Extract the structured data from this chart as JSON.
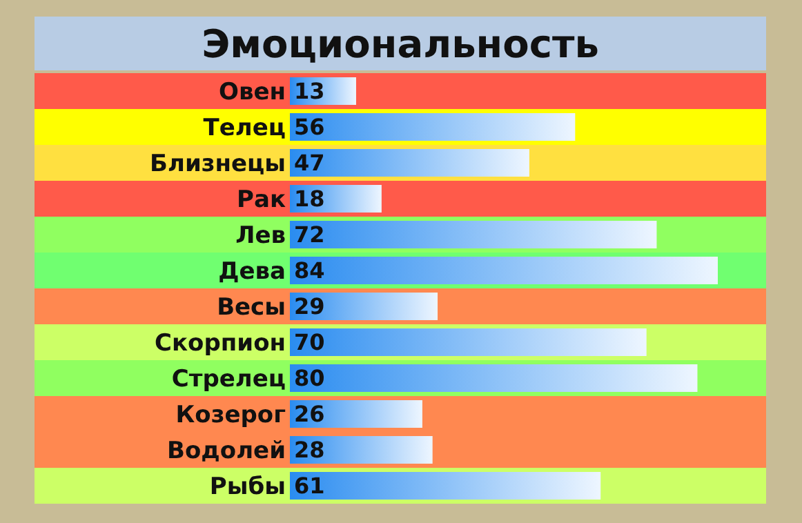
{
  "chart_data": {
    "type": "bar",
    "orientation": "horizontal",
    "title": "Эмоциональность",
    "categories": [
      "Овен",
      "Телец",
      "Близнецы",
      "Рак",
      "Лев",
      "Дева",
      "Весы",
      "Скорпион",
      "Стрелец",
      "Козерог",
      "Водолей",
      "Рыбы"
    ],
    "values": [
      13,
      56,
      47,
      18,
      72,
      84,
      29,
      70,
      80,
      26,
      28,
      61
    ],
    "color": "#2a8cf0",
    "data_labels": true,
    "bands": [
      {
        "axis": "y",
        "from": "Овен",
        "to": "Овен",
        "color": "#ff5a4a"
      },
      {
        "axis": "y",
        "from": "Телец",
        "to": "Телец",
        "color": "#ffff00"
      },
      {
        "axis": "y",
        "from": "Близнецы",
        "to": "Близнецы",
        "color": "#ffe040"
      },
      {
        "axis": "y",
        "from": "Рак",
        "to": "Рак",
        "color": "#ff5a4a"
      },
      {
        "axis": "y",
        "from": "Лев",
        "to": "Лев",
        "color": "#90ff60"
      },
      {
        "axis": "y",
        "from": "Дева",
        "to": "Дева",
        "color": "#70ff70"
      },
      {
        "axis": "y",
        "from": "Весы",
        "to": "Весы",
        "color": "#ff8850"
      },
      {
        "axis": "y",
        "from": "Скорпион",
        "to": "Скорпион",
        "color": "#ccff66"
      },
      {
        "axis": "y",
        "from": "Стрелец",
        "to": "Стрелец",
        "color": "#90ff60"
      },
      {
        "axis": "y",
        "from": "Козерог",
        "to": "Водолей",
        "color": "#ff8850"
      },
      {
        "axis": "y",
        "from": "Рыбы",
        "to": "Рыбы",
        "color": "#ccff66"
      }
    ]
  }
}
